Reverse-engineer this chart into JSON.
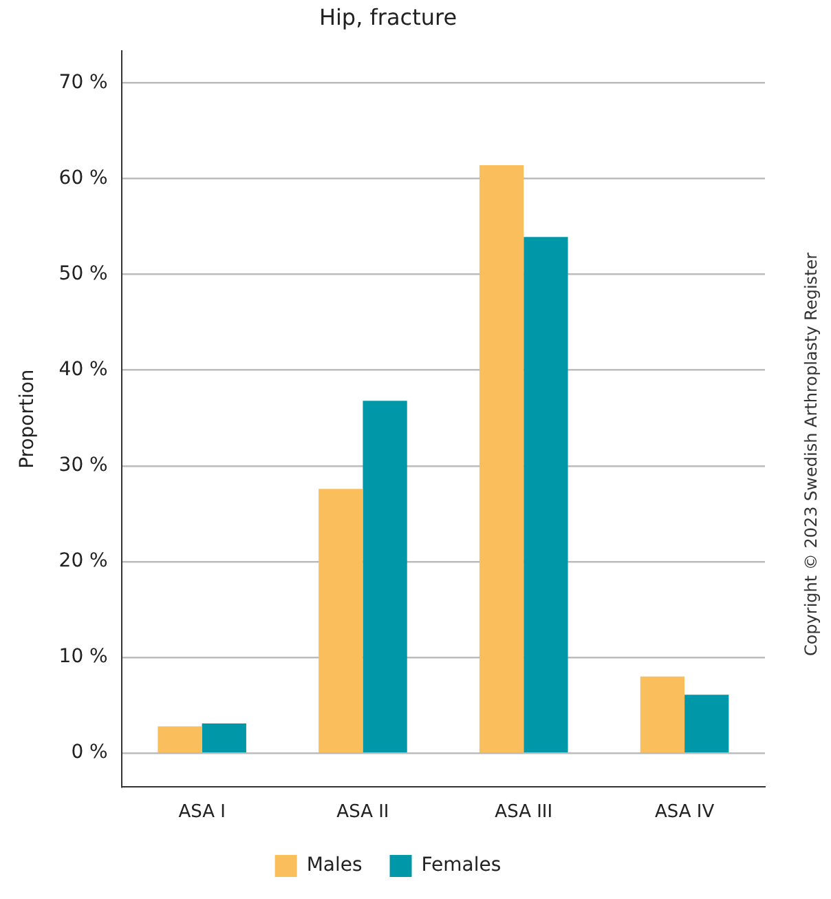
{
  "chart_data": {
    "type": "bar",
    "title": "Hip, fracture",
    "ylabel": "Proportion",
    "categories": [
      "ASA I",
      "ASA II",
      "ASA III",
      "ASA IV"
    ],
    "series": [
      {
        "name": "Males",
        "color": "#fbbe5d",
        "values": [
          2.8,
          27.6,
          61.4,
          8.0
        ]
      },
      {
        "name": "Females",
        "color": "#0097a9",
        "values": [
          3.1,
          36.8,
          53.9,
          6.1
        ]
      }
    ],
    "ylim": [
      -3.5,
      73.3
    ],
    "yticks": [
      {
        "value": 0,
        "label": "0 %"
      },
      {
        "value": 10,
        "label": "10 %"
      },
      {
        "value": 20,
        "label": "20 %"
      },
      {
        "value": 30,
        "label": "30 %"
      },
      {
        "value": 40,
        "label": "40 %"
      },
      {
        "value": 50,
        "label": "50 %"
      },
      {
        "value": 60,
        "label": "60 %"
      },
      {
        "value": 70,
        "label": "70 %"
      }
    ],
    "grid": "y",
    "legend": "bottom",
    "annotations": [
      "Copyright © 2023 Swedish Arthroplasty Register"
    ]
  }
}
